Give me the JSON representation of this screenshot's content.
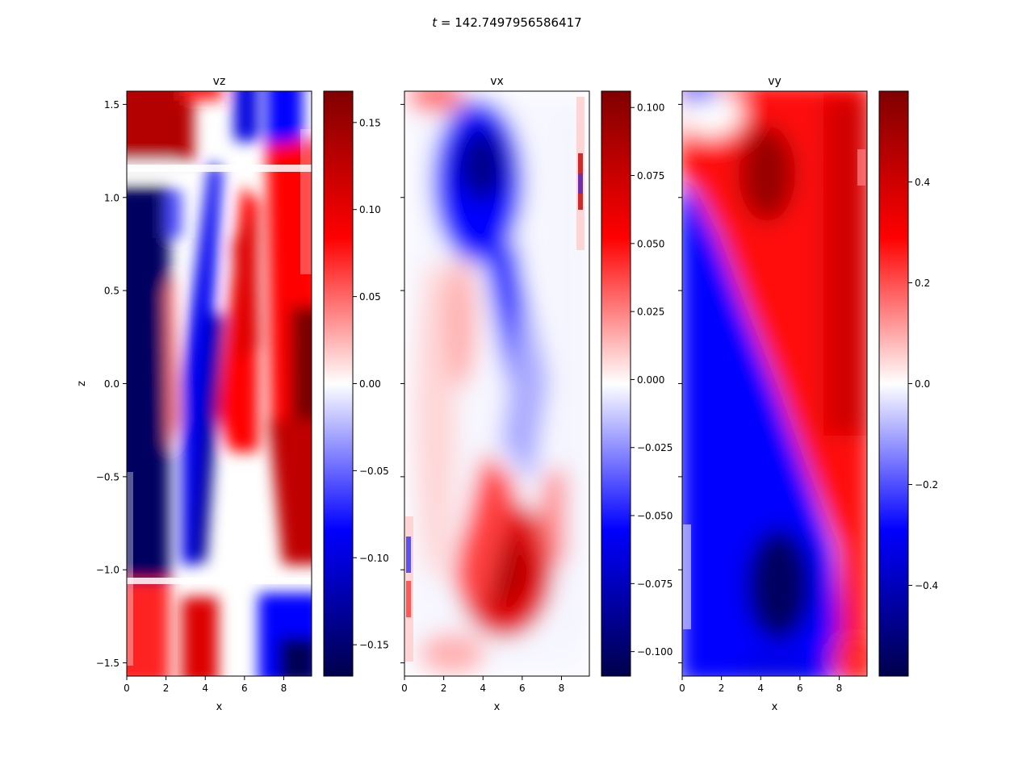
{
  "figure": {
    "suptitle": "t = 142.7497956586417",
    "suptitle_main": "t",
    "suptitle_rest": " = 142.7497956586417"
  },
  "chart_data": [
    {
      "type": "heatmap",
      "title": "vz",
      "xlabel": "x",
      "ylabel": "z",
      "xlim": [
        0,
        9.42
      ],
      "ylim": [
        -1.571,
        1.571
      ],
      "xticks": [
        0,
        2,
        4,
        6,
        8
      ],
      "xtick_labels": [
        "0",
        "2",
        "4",
        "6",
        "8"
      ],
      "yticks": [
        -1.5,
        -1.0,
        -0.5,
        0.0,
        0.5,
        1.0,
        1.5
      ],
      "ytick_labels": [
        "−1.5",
        "−1.0",
        "−0.5",
        "0.0",
        "0.5",
        "1.0",
        "1.5"
      ],
      "colormap": "seismic",
      "clim": [
        -0.168,
        0.168
      ],
      "colorbar_ticks": [
        -0.15,
        -0.1,
        -0.05,
        0.0,
        0.05,
        0.1,
        0.15
      ],
      "colorbar_tick_labels": [
        "−0.15",
        "−0.10",
        "−0.05",
        "0.00",
        "0.05",
        "0.10",
        "0.15"
      ],
      "grid": false
    },
    {
      "type": "heatmap",
      "title": "vx",
      "xlabel": "x",
      "ylabel": "",
      "xlim": [
        0,
        9.42
      ],
      "ylim": [
        -1.571,
        1.571
      ],
      "xticks": [
        0,
        2,
        4,
        6,
        8
      ],
      "xtick_labels": [
        "0",
        "2",
        "4",
        "6",
        "8"
      ],
      "colormap": "seismic",
      "clim": [
        -0.109,
        0.106
      ],
      "colorbar_ticks": [
        -0.1,
        -0.075,
        -0.05,
        -0.025,
        0.0,
        0.025,
        0.05,
        0.075,
        0.1
      ],
      "colorbar_tick_labels": [
        "−0.100",
        "−0.075",
        "−0.050",
        "−0.025",
        "0.000",
        "0.025",
        "0.050",
        "0.075",
        "0.100"
      ],
      "grid": false
    },
    {
      "type": "heatmap",
      "title": "vy",
      "xlabel": "x",
      "ylabel": "",
      "xlim": [
        0,
        9.42
      ],
      "ylim": [
        -1.571,
        1.571
      ],
      "xticks": [
        0,
        2,
        4,
        6,
        8
      ],
      "xtick_labels": [
        "0",
        "2",
        "4",
        "6",
        "8"
      ],
      "colormap": "seismic",
      "clim": [
        -0.58,
        0.58
      ],
      "colorbar_ticks": [
        -0.4,
        -0.2,
        0.0,
        0.2,
        0.4
      ],
      "colorbar_tick_labels": [
        "−0.4",
        "−0.2",
        "0.0",
        "0.2",
        "0.4"
      ],
      "grid": false
    }
  ]
}
